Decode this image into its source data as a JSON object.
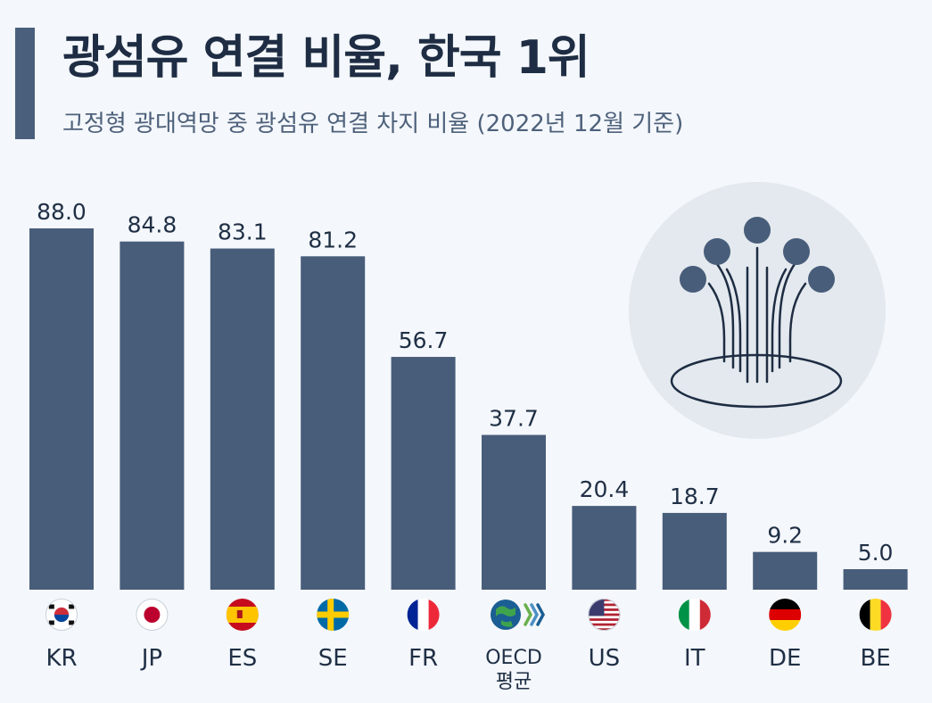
{
  "header": {
    "title": "광섬유 연결 비율, 한국 1위",
    "subtitle": "고정형 광대역망 중 광섬유 연결 차지 비율 (2022년 12월 기준)"
  },
  "colors": {
    "bar": "#485d7a",
    "accent": "#4a5f7c",
    "illustration_bg": "#e3e9ee"
  },
  "illustration": {
    "icon": "fiber-optic-icon"
  },
  "chart_data": {
    "type": "bar",
    "title": "광섬유 연결 비율, 한국 1위",
    "subtitle": "고정형 광대역망 중 광섬유 연결 차지 비율 (2022년 12월 기준)",
    "categories": [
      "KR",
      "JP",
      "ES",
      "SE",
      "FR",
      "OECD 평균",
      "US",
      "IT",
      "DE",
      "BE"
    ],
    "category_lines": [
      [
        "KR"
      ],
      [
        "JP"
      ],
      [
        "ES"
      ],
      [
        "SE"
      ],
      [
        "FR"
      ],
      [
        "OECD",
        "평균"
      ],
      [
        "US"
      ],
      [
        "IT"
      ],
      [
        "DE"
      ],
      [
        "BE"
      ]
    ],
    "values": [
      88.0,
      84.8,
      83.1,
      81.2,
      56.7,
      37.7,
      20.4,
      18.7,
      9.2,
      5.0
    ],
    "value_labels": [
      "88.0",
      "84.8",
      "83.1",
      "81.2",
      "56.7",
      "37.7",
      "20.4",
      "18.7",
      "9.2",
      "5.0"
    ],
    "flags": [
      "kr-flag-icon",
      "jp-flag-icon",
      "es-flag-icon",
      "se-flag-icon",
      "fr-flag-icon",
      "oecd-logo-icon",
      "us-flag-icon",
      "it-flag-icon",
      "de-flag-icon",
      "be-flag-icon"
    ],
    "ylim": [
      0,
      88
    ],
    "grid": false,
    "legend": "none"
  }
}
